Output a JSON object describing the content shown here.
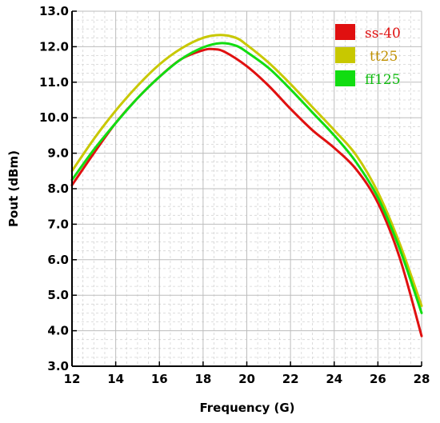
{
  "chart_data": {
    "type": "line",
    "title": "",
    "xlabel": "Frequency (G)",
    "ylabel": "Pout (dBm)",
    "xlim": [
      12,
      28
    ],
    "ylim": [
      3.0,
      13.0
    ],
    "x_ticks": [
      "12",
      "14",
      "16",
      "18",
      "20",
      "22",
      "24",
      "26",
      "28"
    ],
    "y_ticks": [
      "3.0",
      "4.0",
      "5.0",
      "6.0",
      "7.0",
      "8.0",
      "9.0",
      "10.0",
      "11.0",
      "12.0",
      "13.0"
    ],
    "grid": true,
    "legend_position": "top-right",
    "series": [
      {
        "name": "ss-40",
        "color": "#e01010",
        "x": [
          12,
          13,
          14,
          15,
          16,
          17,
          18,
          18.5,
          19,
          20,
          21,
          22,
          23,
          24,
          25,
          26,
          27,
          28
        ],
        "y": [
          8.1,
          9.0,
          9.85,
          10.55,
          11.15,
          11.65,
          11.9,
          11.93,
          11.85,
          11.45,
          10.9,
          10.25,
          9.65,
          9.15,
          8.55,
          7.6,
          6.05,
          3.85
        ]
      },
      {
        "name": "tt25",
        "color": "#c8c800",
        "x": [
          12,
          13,
          14,
          15,
          16,
          17,
          18,
          18.8,
          19.5,
          20,
          21,
          22,
          23,
          24,
          25,
          26,
          27,
          28
        ],
        "y": [
          8.5,
          9.4,
          10.2,
          10.9,
          11.5,
          11.95,
          12.25,
          12.33,
          12.25,
          12.05,
          11.55,
          10.95,
          10.3,
          9.65,
          8.95,
          7.9,
          6.45,
          4.7
        ]
      },
      {
        "name": "ff125",
        "color": "#11dd11",
        "x": [
          12,
          13,
          14,
          15,
          16,
          17,
          18,
          18.8,
          19.5,
          20,
          21,
          22,
          23,
          24,
          25,
          26,
          27,
          28
        ],
        "y": [
          8.25,
          9.1,
          9.85,
          10.55,
          11.15,
          11.65,
          11.98,
          12.1,
          12.03,
          11.85,
          11.4,
          10.8,
          10.15,
          9.5,
          8.75,
          7.75,
          6.3,
          4.5
        ]
      }
    ]
  },
  "legend": {
    "items": [
      {
        "label": "ss-40",
        "color": "#e01010",
        "text_color": "#e01010"
      },
      {
        "label": "tt25",
        "color": "#c8c800",
        "text_color": "#c09000"
      },
      {
        "label": "ff125",
        "color": "#11dd11",
        "text_color": "#11bb11"
      }
    ]
  }
}
